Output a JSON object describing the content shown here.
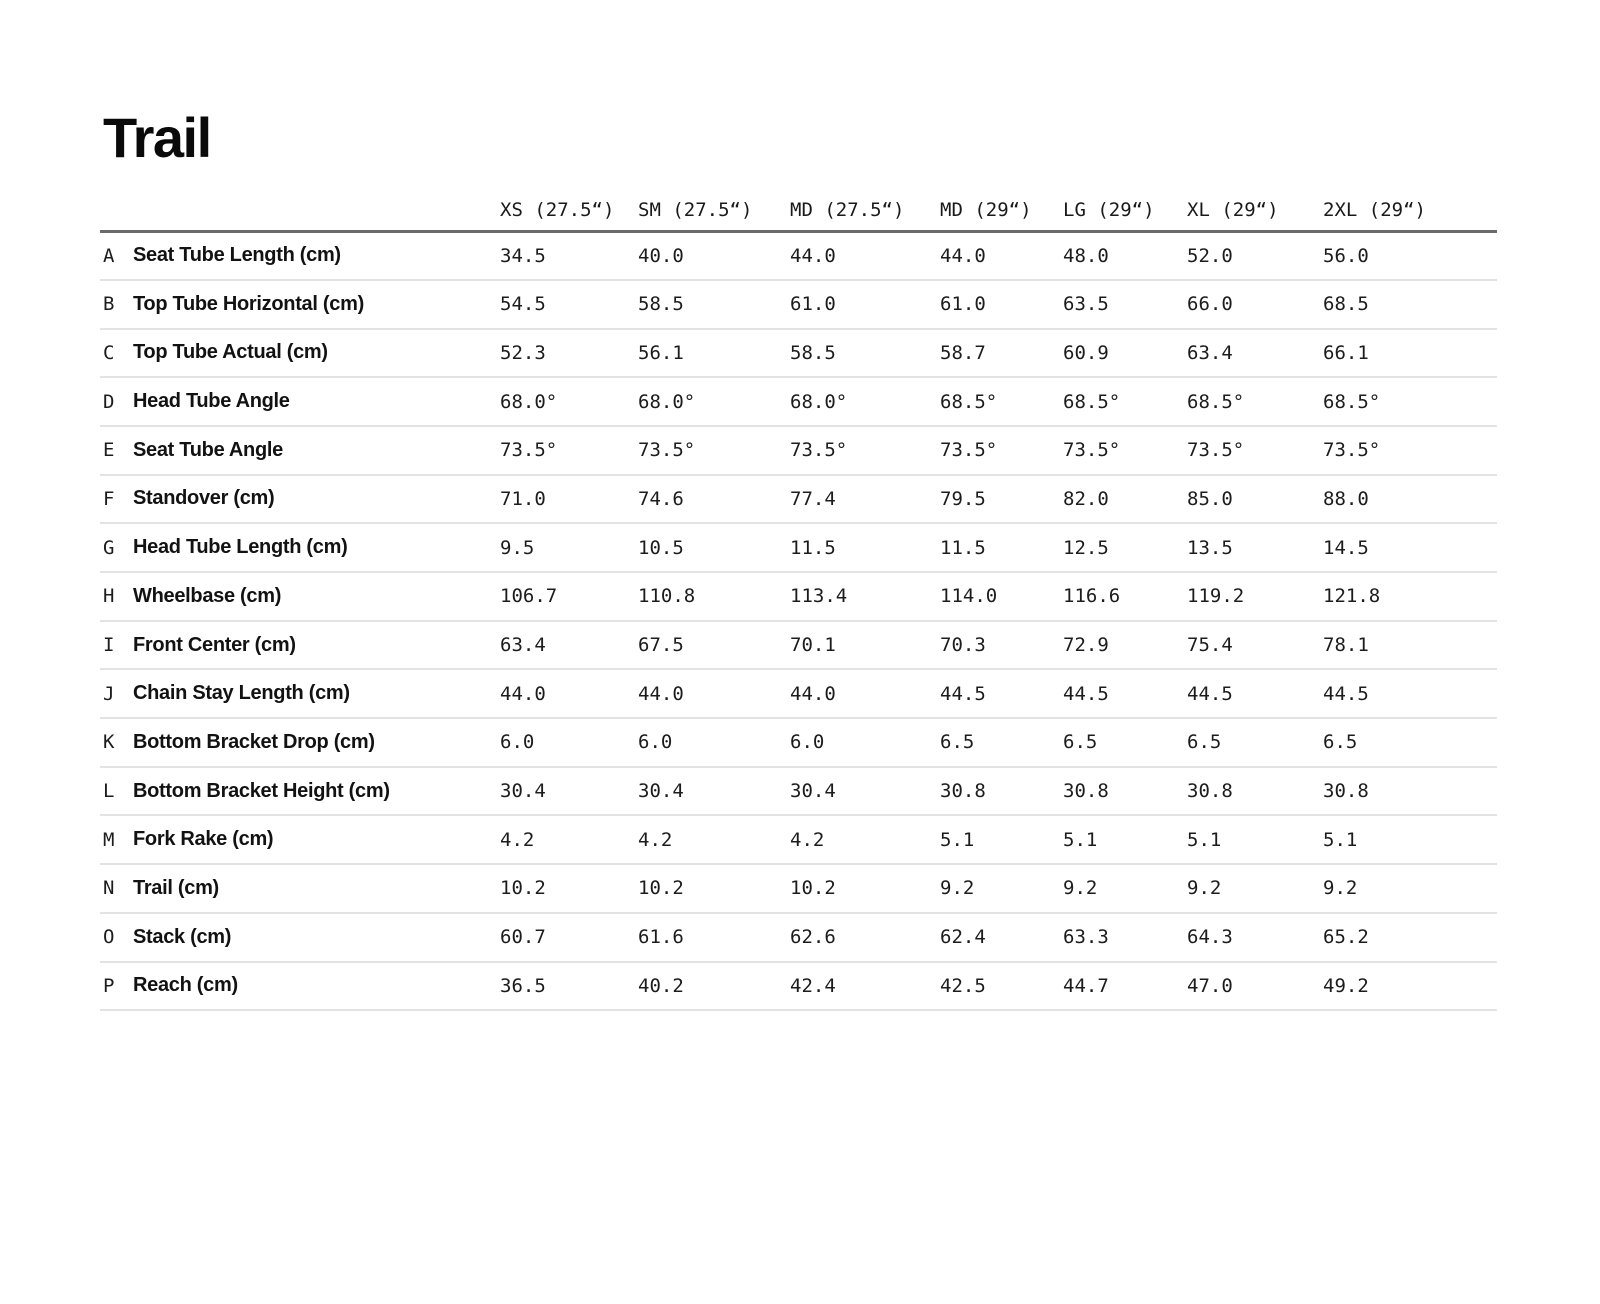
{
  "title": "Trail",
  "chart_data": {
    "type": "table",
    "title": "Trail",
    "size_headers": [
      "XS (27.5“)",
      "SM (27.5“)",
      "MD (27.5“)",
      "MD (29“)",
      "LG (29“)",
      "XL (29“)",
      "2XL (29“)"
    ],
    "rows": [
      {
        "letter": "A",
        "label": "Seat Tube Length (cm)",
        "values": [
          "34.5",
          "40.0",
          "44.0",
          "44.0",
          "48.0",
          "52.0",
          "56.0"
        ]
      },
      {
        "letter": "B",
        "label": "Top Tube Horizontal (cm)",
        "values": [
          "54.5",
          "58.5",
          "61.0",
          "61.0",
          "63.5",
          "66.0",
          "68.5"
        ]
      },
      {
        "letter": "C",
        "label": "Top Tube Actual (cm)",
        "values": [
          "52.3",
          "56.1",
          "58.5",
          "58.7",
          "60.9",
          "63.4",
          "66.1"
        ]
      },
      {
        "letter": "D",
        "label": "Head Tube Angle",
        "values": [
          "68.0°",
          "68.0°",
          "68.0°",
          "68.5°",
          "68.5°",
          "68.5°",
          "68.5°"
        ]
      },
      {
        "letter": "E",
        "label": "Seat Tube Angle",
        "values": [
          "73.5°",
          "73.5°",
          "73.5°",
          "73.5°",
          "73.5°",
          "73.5°",
          "73.5°"
        ]
      },
      {
        "letter": "F",
        "label": "Standover (cm)",
        "values": [
          "71.0",
          "74.6",
          "77.4",
          "79.5",
          "82.0",
          "85.0",
          "88.0"
        ]
      },
      {
        "letter": "G",
        "label": "Head Tube Length (cm)",
        "values": [
          "9.5",
          "10.5",
          "11.5",
          "11.5",
          "12.5",
          "13.5",
          "14.5"
        ]
      },
      {
        "letter": "H",
        "label": "Wheelbase (cm)",
        "values": [
          "106.7",
          "110.8",
          "113.4",
          "114.0",
          "116.6",
          "119.2",
          "121.8"
        ]
      },
      {
        "letter": "I",
        "label": "Front Center (cm)",
        "values": [
          "63.4",
          "67.5",
          "70.1",
          "70.3",
          "72.9",
          "75.4",
          "78.1"
        ]
      },
      {
        "letter": "J",
        "label": "Chain Stay Length (cm)",
        "values": [
          "44.0",
          "44.0",
          "44.0",
          "44.5",
          "44.5",
          "44.5",
          "44.5"
        ]
      },
      {
        "letter": "K",
        "label": "Bottom Bracket Drop (cm)",
        "values": [
          "6.0",
          "6.0",
          "6.0",
          "6.5",
          "6.5",
          "6.5",
          "6.5"
        ]
      },
      {
        "letter": "L",
        "label": "Bottom Bracket Height (cm)",
        "values": [
          "30.4",
          "30.4",
          "30.4",
          "30.8",
          "30.8",
          "30.8",
          "30.8"
        ]
      },
      {
        "letter": "M",
        "label": "Fork Rake (cm)",
        "values": [
          "4.2",
          "4.2",
          "4.2",
          "5.1",
          "5.1",
          "5.1",
          "5.1"
        ]
      },
      {
        "letter": "N",
        "label": "Trail (cm)",
        "values": [
          "10.2",
          "10.2",
          "10.2",
          "9.2",
          "9.2",
          "9.2",
          "9.2"
        ]
      },
      {
        "letter": "O",
        "label": "Stack (cm)",
        "values": [
          "60.7",
          "61.6",
          "62.6",
          "62.4",
          "63.3",
          "64.3",
          "65.2"
        ]
      },
      {
        "letter": "P",
        "label": "Reach (cm)",
        "values": [
          "36.5",
          "40.2",
          "42.4",
          "42.5",
          "44.7",
          "47.0",
          "49.2"
        ]
      }
    ]
  },
  "colors": {
    "header_rule": "#6b6b6b",
    "row_rule": "#e3e3e3",
    "title_text": "#0a0a0a"
  }
}
